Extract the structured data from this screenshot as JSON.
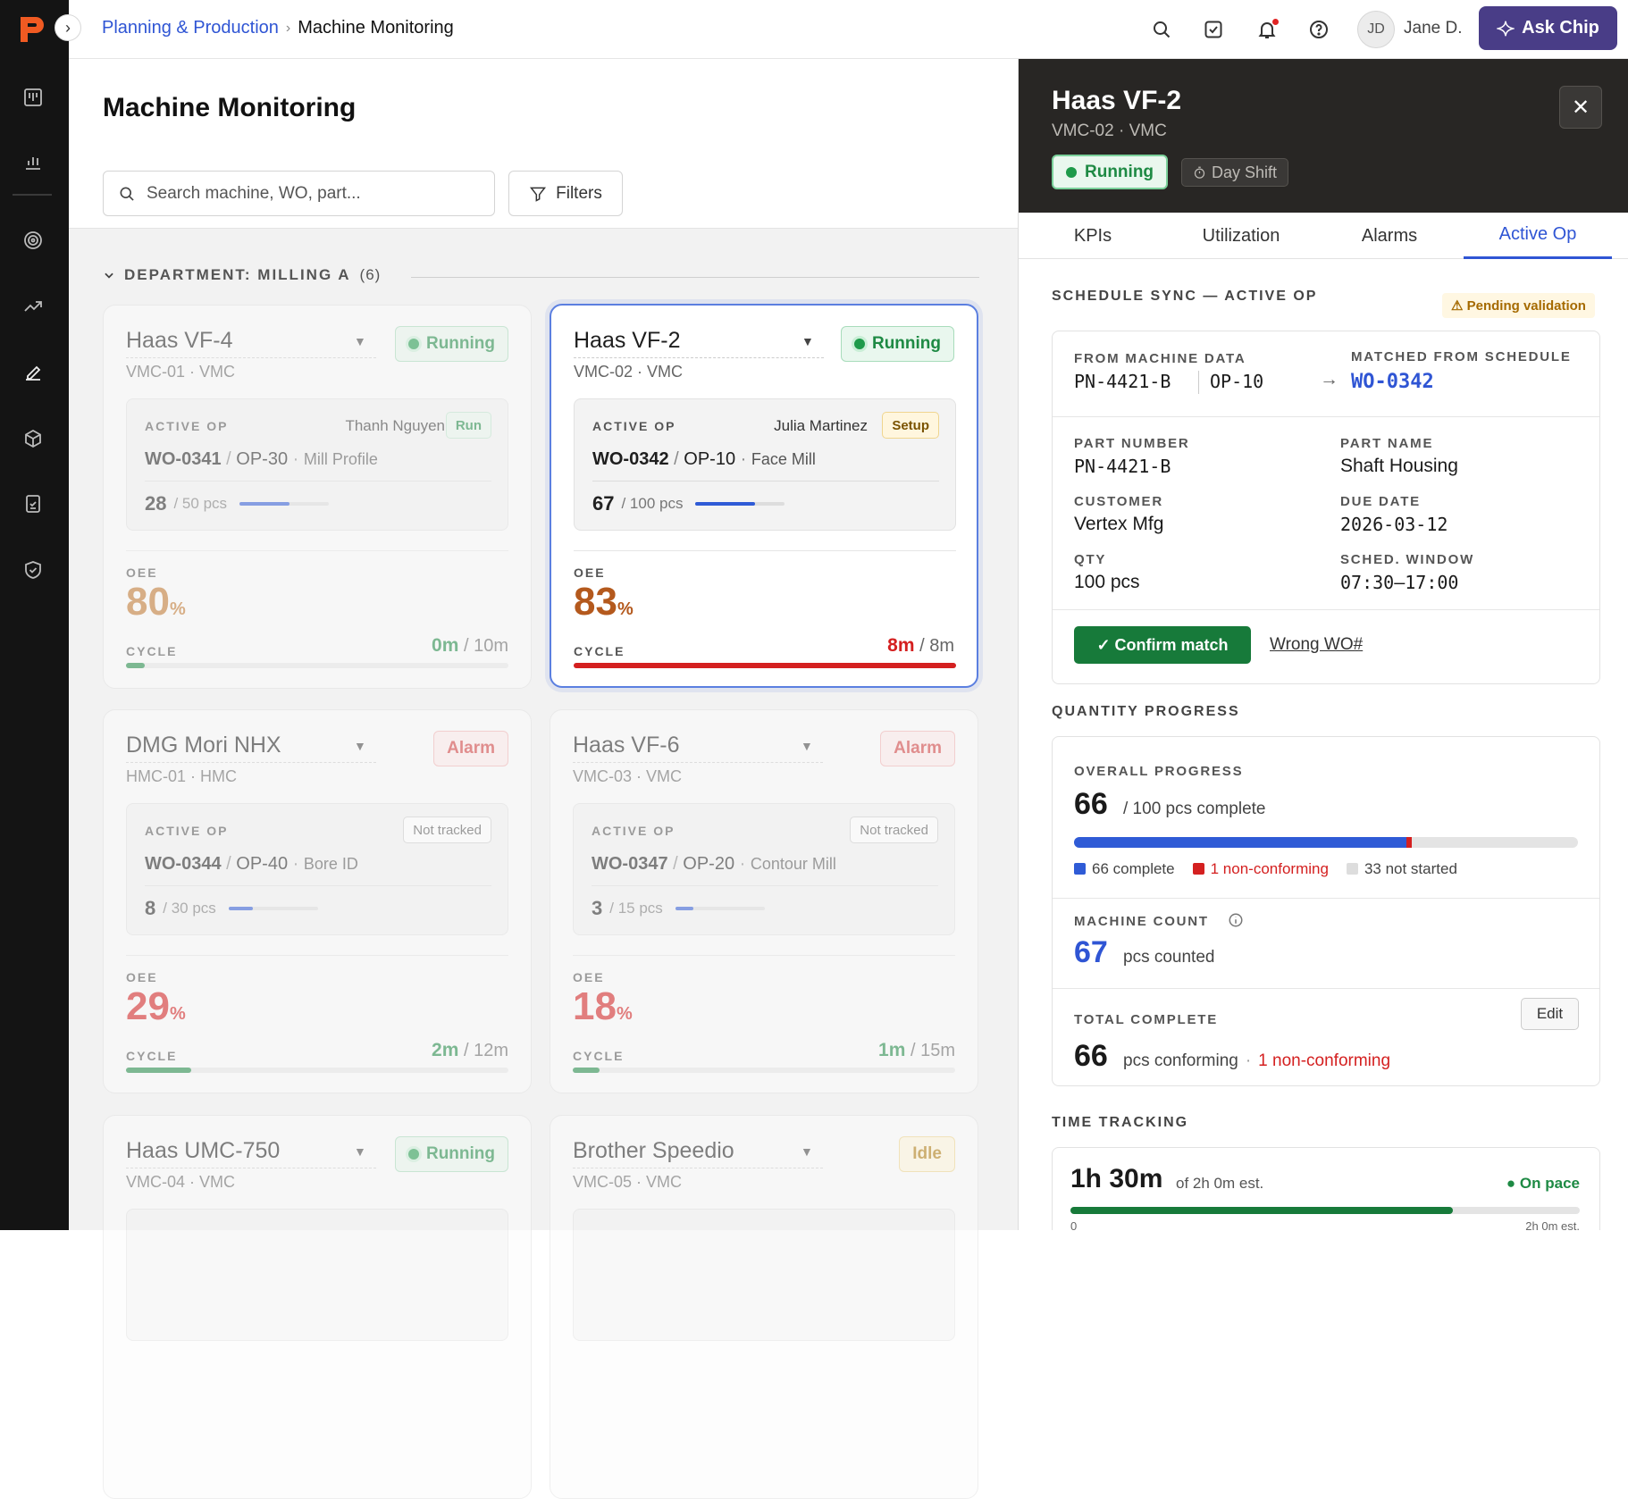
{
  "breadcrumb": {
    "parent": "Planning & Production",
    "separator": "›",
    "current": "Machine Monitoring"
  },
  "topbar": {
    "user_initials": "JD",
    "user_name": "Jane D.",
    "ask_label": "Ask Chip"
  },
  "page": {
    "title": "Machine Monitoring",
    "search_placeholder": "Search machine, WO, part...",
    "filters_label": "Filters"
  },
  "department": {
    "label": "DEPARTMENT: MILLING A",
    "count": "(6)"
  },
  "machines": [
    {
      "name": "Haas VF-4",
      "sub": "VMC-01 · VMC",
      "status": "Running",
      "op_label": "ACTIVE OP",
      "operator": "Thanh Nguyen",
      "op_tag": "Run",
      "wo": "WO-0341",
      "op": "OP-30",
      "desc": "Mill Profile",
      "qty": "28",
      "qty_total": "/ 50 pcs",
      "qty_progress": 0.56,
      "oee_label": "OEE",
      "oee": "80",
      "oee_unit": "%",
      "cycle_label": "CYCLE",
      "cycle_actual": "0m",
      "cycle_std": "/ 10m",
      "cycle_progress": 0.05
    },
    {
      "name": "Haas VF-2",
      "sub": "VMC-02 · VMC",
      "status": "Running",
      "op_label": "ACTIVE OP",
      "operator": "Julia Martinez",
      "op_tag": "Setup",
      "wo": "WO-0342",
      "op": "OP-10",
      "desc": "Face Mill",
      "qty": "67",
      "qty_total": "/ 100 pcs",
      "qty_progress": 0.67,
      "oee_label": "OEE",
      "oee": "83",
      "oee_unit": "%",
      "cycle_label": "CYCLE",
      "cycle_actual": "8m",
      "cycle_std": "/ 8m",
      "cycle_progress": 1.0
    },
    {
      "name": "DMG Mori NHX",
      "sub": "HMC-01 · HMC",
      "status": "Alarm",
      "op_label": "ACTIVE OP",
      "operator": "",
      "op_tag": "Not tracked",
      "wo": "WO-0344",
      "op": "OP-40",
      "desc": "Bore ID",
      "qty": "8",
      "qty_total": "/ 30 pcs",
      "qty_progress": 0.27,
      "oee_label": "OEE",
      "oee": "29",
      "oee_unit": "%",
      "cycle_label": "CYCLE",
      "cycle_actual": "2m",
      "cycle_std": "/ 12m",
      "cycle_progress": 0.17
    },
    {
      "name": "Haas VF-6",
      "sub": "VMC-03 · VMC",
      "status": "Alarm",
      "op_label": "ACTIVE OP",
      "operator": "",
      "op_tag": "Not tracked",
      "wo": "WO-0347",
      "op": "OP-20",
      "desc": "Contour Mill",
      "qty": "3",
      "qty_total": "/ 15 pcs",
      "qty_progress": 0.2,
      "oee_label": "OEE",
      "oee": "18",
      "oee_unit": "%",
      "cycle_label": "CYCLE",
      "cycle_actual": "1m",
      "cycle_std": "/ 15m",
      "cycle_progress": 0.07
    },
    {
      "name": "Haas UMC-750",
      "sub": "VMC-04 · VMC",
      "status": "Running"
    },
    {
      "name": "Brother Speedio",
      "sub": "VMC-05 · VMC",
      "status": "Idle"
    }
  ],
  "panel": {
    "title": "Haas VF-2",
    "sub": "VMC-02 · VMC",
    "status": "Running",
    "shift": "Day Shift",
    "tabs": [
      "KPIs",
      "Utilization",
      "Alarms",
      "Active Op"
    ],
    "schedule_sync": {
      "label": "SCHEDULE SYNC — ACTIVE OP",
      "pending": "Pending validation",
      "from_label": "FROM MACHINE DATA",
      "from_part": "PN-4421-B",
      "from_op": "OP-10",
      "arrow": "→",
      "matched_label": "MATCHED FROM SCHEDULE",
      "matched_wo": "WO-0342",
      "part_number_label": "PART NUMBER",
      "part_number": "PN-4421-B",
      "part_name_label": "PART NAME",
      "part_name": "Shaft Housing",
      "customer_label": "CUSTOMER",
      "customer": "Vertex Mfg",
      "due_label": "DUE DATE",
      "due": "2026-03-12",
      "qty_label": "QTY",
      "qty": "100 pcs",
      "window_label": "SCHED. WINDOW",
      "window": "07:30–17:00",
      "confirm_label": "✓ Confirm match",
      "wrong_label": "Wrong WO#"
    },
    "quantity": {
      "label": "QUANTITY PROGRESS",
      "overall_label": "OVERALL PROGRESS",
      "overall_value": "66",
      "overall_suffix": "/ 100 pcs complete",
      "complete": 66,
      "nonconforming": 1,
      "not_started": 33,
      "total": 100,
      "legend_complete": "66 complete",
      "legend_nonconf": "1 non-conforming",
      "legend_not_started": "33 not started",
      "machine_count_label": "MACHINE COUNT",
      "machine_count": "67",
      "machine_count_suffix": "pcs counted",
      "total_label": "TOTAL COMPLETE",
      "edit_label": "Edit",
      "total_value": "66",
      "total_suffix": "pcs conforming",
      "total_sep": "·",
      "total_nonconf": "1 non-conforming"
    },
    "time": {
      "label": "TIME TRACKING",
      "value": "1h 30m",
      "est": "of 2h 0m est.",
      "status": "● On pace",
      "progress": 0.75,
      "scale_start": "0",
      "scale_end": "2h 0m est."
    }
  },
  "colors": {
    "accent": "#2f55d4",
    "brand": "#f05a22",
    "running": "#1e8a44",
    "alarm": "#d23b3b",
    "idle": "#b07a0a",
    "ask": "#493d87"
  }
}
